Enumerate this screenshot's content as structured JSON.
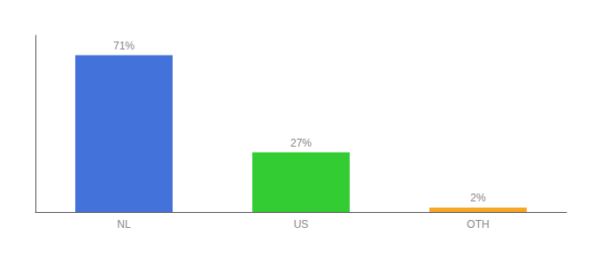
{
  "chart_data": {
    "type": "bar",
    "categories": [
      "NL",
      "US",
      "OTH"
    ],
    "values": [
      71,
      27,
      2
    ],
    "colors": [
      "#4472db",
      "#33cc33",
      "#f5a623"
    ],
    "value_labels": [
      "71%",
      "27%",
      "2%"
    ],
    "data_labels": true,
    "ylim": [
      0,
      80
    ],
    "grid": false,
    "tick_labels": "x"
  }
}
